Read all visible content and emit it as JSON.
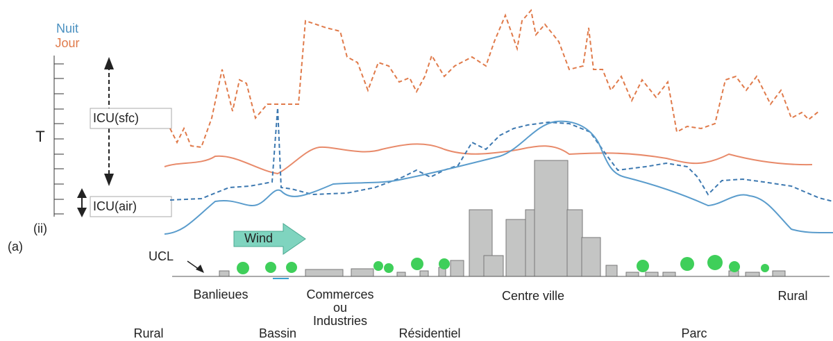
{
  "legend": {
    "night": "Nuit",
    "day": "Jour"
  },
  "axis": {
    "label": "T",
    "panel": "(ii)"
  },
  "figure_label": "(a)",
  "annotations": {
    "surface": "ICU(sfc)",
    "air": "ICU(air)",
    "wind": "Wind",
    "ucl": "UCL"
  },
  "zones_upper": [
    "Banlieues",
    "Commerces",
    "ou",
    "Industries",
    "Centre ville",
    "Rural"
  ],
  "zones_lower": [
    "Rural",
    "Bassin",
    "Résidentiel",
    "Parc"
  ]
}
